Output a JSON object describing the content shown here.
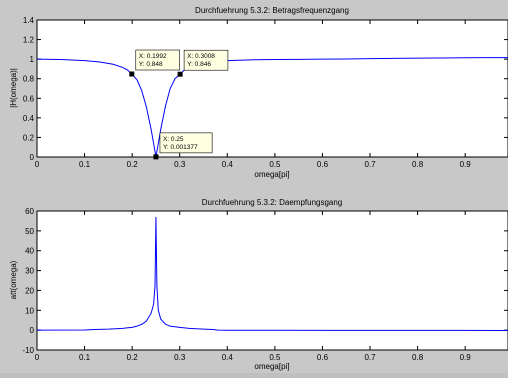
{
  "chart_data": [
    {
      "type": "line",
      "title": "Durchfuehrung 5.3.2: Betragsfrequenzgang",
      "xlabel": "omega[pi]",
      "ylabel": "|H(omega)|",
      "xlim": [
        0,
        0.99
      ],
      "ylim": [
        0,
        1.4
      ],
      "xticks": [
        "0",
        "0.1",
        "0.2",
        "0.3",
        "0.4",
        "0.5",
        "0.6",
        "0.7",
        "0.8",
        "0.9"
      ],
      "yticks": [
        "0",
        "0.2",
        "0.4",
        "0.6",
        "0.8",
        "1",
        "1.2",
        "1.4"
      ],
      "grid": false,
      "line_color": "#0000ff",
      "x": [
        0,
        0.05,
        0.1,
        0.13,
        0.16,
        0.18,
        0.19,
        0.1992,
        0.21,
        0.22,
        0.23,
        0.24,
        0.245,
        0.25,
        0.255,
        0.26,
        0.27,
        0.28,
        0.29,
        0.3008,
        0.31,
        0.32,
        0.34,
        0.37,
        0.4,
        0.45,
        0.5,
        0.55,
        0.6,
        0.65,
        0.7,
        0.75,
        0.8,
        0.85,
        0.9,
        0.95,
        0.99
      ],
      "y": [
        1.0,
        0.996,
        0.985,
        0.972,
        0.948,
        0.915,
        0.89,
        0.848,
        0.79,
        0.68,
        0.51,
        0.28,
        0.14,
        0.001377,
        0.14,
        0.28,
        0.52,
        0.7,
        0.8,
        0.846,
        0.89,
        0.925,
        0.955,
        0.975,
        0.985,
        0.993,
        0.997,
        0.998,
        1.0,
        1.002,
        1.005,
        1.008,
        1.01,
        1.012,
        1.014,
        1.015,
        1.016
      ],
      "annotations": [
        {
          "x": 0.1992,
          "y": 0.848,
          "line1": "X: 0.1992",
          "line2": "Y: 0.848"
        },
        {
          "x": 0.3008,
          "y": 0.846,
          "line1": "X: 0.3008",
          "line2": "Y: 0.846"
        },
        {
          "x": 0.25,
          "y": 0.001377,
          "line1": "X: 0.25",
          "line2": "Y: 0.001377"
        }
      ]
    },
    {
      "type": "line",
      "title": "Durchfuehrung 5.3.2: Daempfungsgang",
      "xlabel": "omega[pi]",
      "ylabel": "att(omega)",
      "xlim": [
        0,
        0.99
      ],
      "ylim": [
        -10,
        60
      ],
      "xticks": [
        "0",
        "0.1",
        "0.2",
        "0.3",
        "0.4",
        "0.5",
        "0.6",
        "0.7",
        "0.8",
        "0.9"
      ],
      "yticks": [
        "-10",
        "0",
        "10",
        "20",
        "30",
        "40",
        "50",
        "60"
      ],
      "grid": false,
      "line_color": "#0000ff",
      "x": [
        0,
        0.1,
        0.12,
        0.15,
        0.18,
        0.2,
        0.21,
        0.22,
        0.23,
        0.24,
        0.245,
        0.248,
        0.25,
        0.252,
        0.255,
        0.26,
        0.27,
        0.28,
        0.29,
        0.3,
        0.32,
        0.35,
        0.37,
        0.38,
        0.4,
        0.5,
        0.6,
        0.7,
        0.8,
        0.9,
        0.99
      ],
      "y": [
        0,
        0.1,
        0.3,
        0.5,
        0.9,
        1.4,
        2.0,
        2.9,
        4.6,
        8.6,
        13,
        22,
        57,
        22,
        10,
        5.6,
        3.0,
        2.0,
        1.7,
        1.4,
        0.9,
        0.5,
        0.3,
        0,
        -0.05,
        -0.08,
        -0.1,
        -0.1,
        -0.12,
        -0.14,
        -0.15
      ]
    }
  ]
}
